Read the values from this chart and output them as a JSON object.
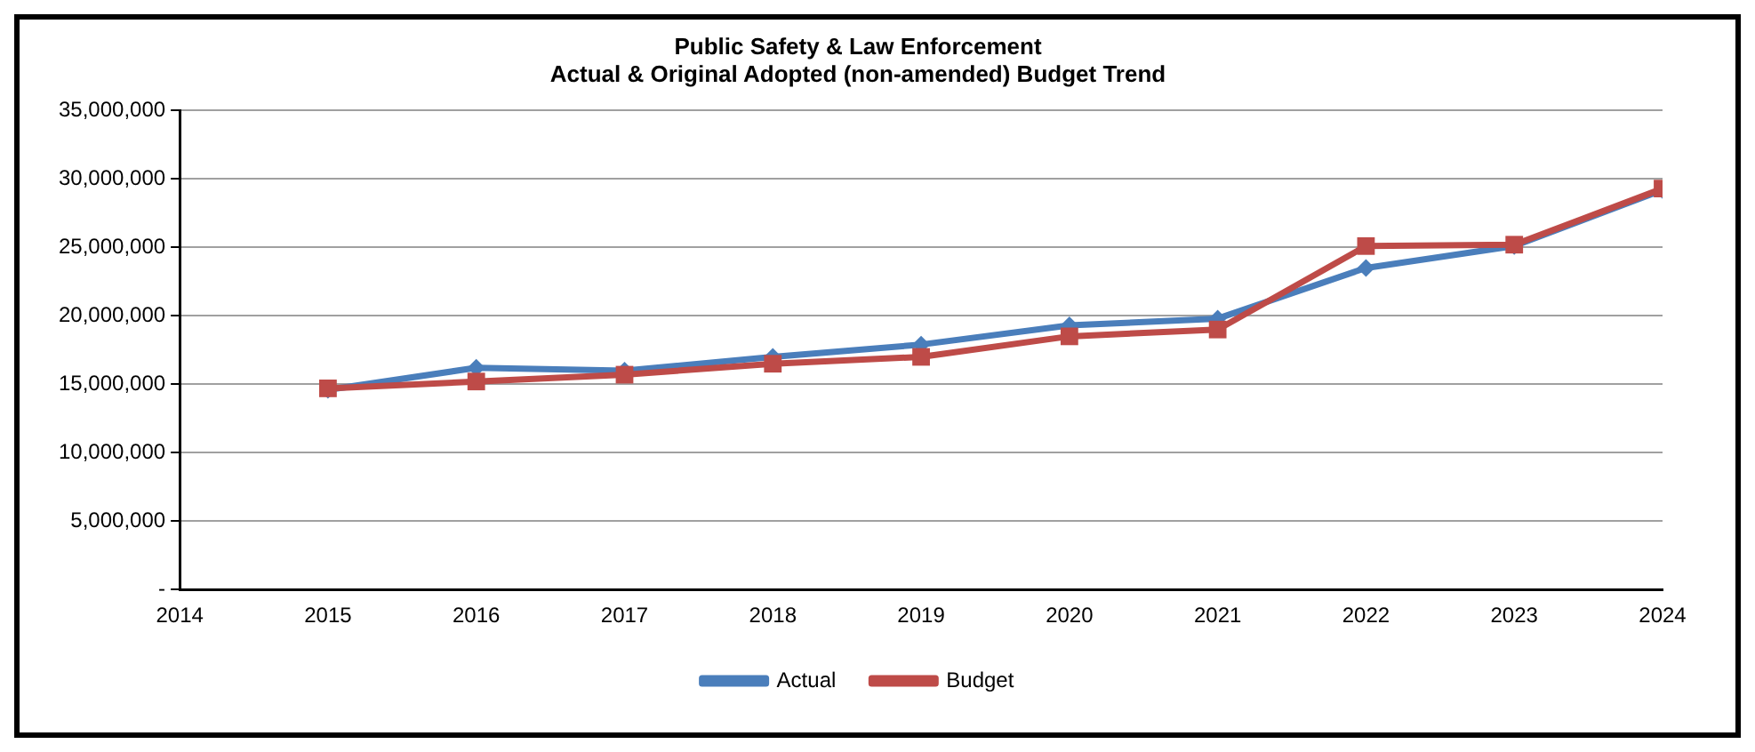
{
  "chart_data": {
    "type": "line",
    "title": "Public Safety & Law Enforcement\nActual & Original Adopted (non-amended) Budget Trend",
    "x": [
      2015,
      2016,
      2017,
      2018,
      2019,
      2020,
      2021,
      2022,
      2023,
      2024
    ],
    "series": [
      {
        "name": "Actual",
        "color": "#4a7ebb",
        "marker": "diamond",
        "values": [
          14600000,
          16200000,
          16000000,
          17000000,
          17900000,
          19300000,
          19800000,
          23500000,
          25100000,
          29200000
        ]
      },
      {
        "name": "Budget",
        "color": "#be4b48",
        "marker": "square",
        "values": [
          14700000,
          15200000,
          15700000,
          16500000,
          17000000,
          18500000,
          19000000,
          25100000,
          25200000,
          29300000
        ]
      }
    ],
    "xlim": [
      2014,
      2024
    ],
    "xticks": [
      2014,
      2015,
      2016,
      2017,
      2018,
      2019,
      2020,
      2021,
      2022,
      2023,
      2024
    ],
    "ylim": [
      0,
      35000000
    ],
    "yticks": [
      {
        "value": 0,
        "label": "-"
      },
      {
        "value": 5000000,
        "label": "5,000,000"
      },
      {
        "value": 10000000,
        "label": "10,000,000"
      },
      {
        "value": 15000000,
        "label": "15,000,000"
      },
      {
        "value": 20000000,
        "label": "20,000,000"
      },
      {
        "value": 25000000,
        "label": "25,000,000"
      },
      {
        "value": 30000000,
        "label": "30,000,000"
      },
      {
        "value": 35000000,
        "label": "35,000,000"
      }
    ],
    "grid": "y",
    "legend": "bottom"
  }
}
